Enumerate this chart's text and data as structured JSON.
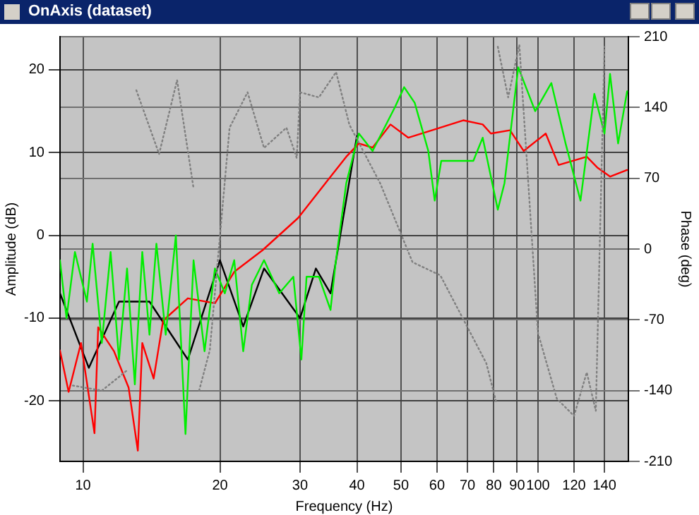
{
  "chart_data": {
    "type": "line",
    "title": "OnAxis (dataset)",
    "xlabel": "Frequency (Hz)",
    "ylabel": "Amplitude (dB)",
    "y2label": "Phase (deg)",
    "log": "x",
    "grid": true,
    "legend": false,
    "marker": "none",
    "xlim": [
      8.9,
      158
    ],
    "xticks": [
      10,
      20,
      30,
      40,
      50,
      60,
      70,
      80,
      90,
      100,
      120,
      140
    ],
    "ylim": [
      -27.3,
      24
    ],
    "yticks": [
      -20,
      -10,
      0,
      10,
      20
    ],
    "y2lim": [
      -210,
      210
    ],
    "y2ticks": [
      -210,
      -140,
      -70,
      0,
      70,
      140,
      210
    ],
    "series": [
      {
        "color": "#808080",
        "axis": "y2",
        "line_style": "dotted",
        "x": [
          9.5,
          11,
          12.5,
          12.8,
          13.1,
          14.7,
          16.1,
          17.5,
          17.8,
          18,
          19,
          21,
          23,
          25,
          28,
          29.5,
          30,
          33,
          36,
          38.5,
          45,
          53,
          61,
          77,
          81,
          81.3,
          81.6,
          86,
          91,
          100,
          110,
          120,
          128,
          134,
          140
        ],
        "values": [
          -135,
          -140,
          -120,
          null,
          157,
          94,
          167,
          60,
          null,
          -140,
          -100,
          120,
          155,
          100,
          120,
          90,
          155,
          150,
          175,
          123,
          65,
          -13,
          -26,
          -113,
          -152,
          null,
          200,
          150,
          202,
          -83,
          -148,
          -165,
          -122,
          -160,
          200
        ]
      },
      {
        "color": "#00ee00",
        "line_style": "solid",
        "x": [
          8.9,
          9.2,
          9.6,
          10.2,
          10.5,
          11,
          11.5,
          12,
          12.5,
          13,
          13.5,
          14,
          14.5,
          15.2,
          16,
          16.8,
          17.5,
          18.5,
          19.5,
          20.5,
          21.5,
          22.5,
          23.5,
          25,
          27,
          29,
          30.2,
          31,
          33,
          35,
          35.9,
          37.9,
          40.4,
          43.3,
          48.5,
          50.8,
          53.6,
          57.4,
          59.3,
          61.3,
          72.1,
          75.6,
          81.6,
          84.4,
          90.5,
          98.6,
          107,
          115,
          124,
          133,
          140,
          144,
          150,
          157
        ],
        "values": [
          -3,
          -10,
          -2,
          -8,
          -1,
          -13,
          -2,
          -15,
          -4,
          -18,
          -2,
          -12,
          -1,
          -12,
          0,
          -24,
          -3,
          -14,
          -4,
          -7,
          -3,
          -14,
          -6,
          -3,
          -7,
          -5,
          -15,
          -5,
          -5,
          -9,
          -3.4,
          6.3,
          12.3,
          10.2,
          15.5,
          17.9,
          16,
          10.2,
          4.2,
          9,
          9,
          11.8,
          3.1,
          6.3,
          20.3,
          15,
          18.4,
          11.1,
          4.2,
          17.1,
          12.3,
          19.5,
          11.1,
          17.4
        ]
      },
      {
        "color": "#ff0000",
        "line_style": "solid",
        "x": [
          8.9,
          9.3,
          9.9,
          10.6,
          10.8,
          11.7,
          12.6,
          13.2,
          13.5,
          14.3,
          15,
          17,
          19.5,
          21.5,
          24.8,
          29.7,
          34.1,
          37.9,
          40.4,
          43.3,
          47.4,
          51.9,
          58.5,
          68.5,
          75.6,
          78.8,
          86.8,
          93,
          104,
          111,
          128,
          135,
          144,
          157
        ],
        "values": [
          -13.9,
          -18.9,
          -13,
          -23.9,
          -11.1,
          -14,
          -18.4,
          -26,
          -13,
          -17.3,
          -10.3,
          -7.6,
          -8.2,
          -4.4,
          -1.8,
          2.1,
          6.3,
          9.5,
          11.1,
          10.6,
          13.4,
          11.8,
          12.7,
          13.9,
          13.4,
          12.3,
          12.7,
          10.2,
          12.3,
          8.5,
          9.5,
          8.2,
          7.1,
          7.9
        ]
      },
      {
        "color": "#000000",
        "line_style": "solid",
        "x": [
          8.9,
          10.3,
          12,
          14,
          17,
          20,
          22.5,
          25,
          30,
          32.5,
          35,
          40
        ],
        "values": [
          -7,
          -16,
          -8,
          -8,
          -15,
          -3,
          -11,
          -4,
          -10,
          -4,
          -7,
          12
        ]
      }
    ]
  }
}
